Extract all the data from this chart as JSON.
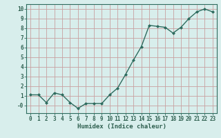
{
  "x": [
    0,
    1,
    2,
    3,
    4,
    5,
    6,
    7,
    8,
    9,
    10,
    11,
    12,
    13,
    14,
    15,
    16,
    17,
    18,
    19,
    20,
    21,
    22,
    23
  ],
  "y": [
    1.1,
    1.1,
    0.3,
    1.3,
    1.1,
    0.3,
    -0.3,
    0.2,
    0.2,
    0.2,
    1.1,
    1.8,
    3.2,
    4.7,
    6.1,
    8.3,
    8.2,
    8.1,
    7.5,
    8.1,
    9.0,
    9.7,
    10.0,
    9.7
  ],
  "line_color": "#2e6b5e",
  "marker": "D",
  "marker_size": 2.0,
  "background_color": "#d8eeec",
  "grid_color": "#c8a0a0",
  "xlabel": "Humidex (Indice chaleur)",
  "xlim": [
    -0.5,
    23.5
  ],
  "ylim": [
    -0.8,
    10.5
  ],
  "xtick_labels": [
    "0",
    "1",
    "2",
    "3",
    "4",
    "5",
    "6",
    "7",
    "8",
    "9",
    "10",
    "11",
    "12",
    "13",
    "14",
    "15",
    "16",
    "17",
    "18",
    "19",
    "20",
    "21",
    "22",
    "23"
  ],
  "ytick_labels": [
    "-0",
    "1",
    "2",
    "3",
    "4",
    "5",
    "6",
    "7",
    "8",
    "9",
    "10"
  ],
  "ytick_vals": [
    0,
    1,
    2,
    3,
    4,
    5,
    6,
    7,
    8,
    9,
    10
  ],
  "font_color": "#2e5f4f",
  "tick_label_size": 5.5,
  "xlabel_size": 6.5,
  "line_width": 1.0
}
